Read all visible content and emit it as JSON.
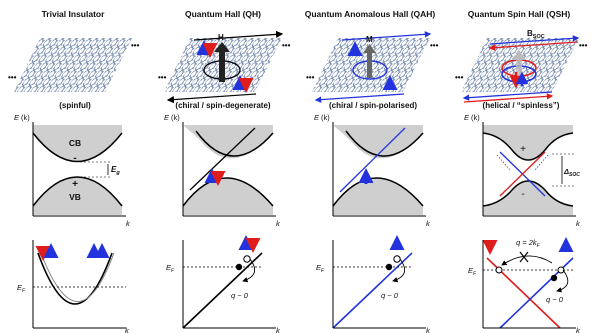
{
  "columns": [
    {
      "title": "Trivial Insulator",
      "subtitle": "(spinful)",
      "cb_label": "CB",
      "vb_label": "VB",
      "gap_label": "E",
      "gap_sub": "g",
      "minus_sign": "-",
      "plus_sign": "+"
    },
    {
      "title": "Quantum Hall (QH)",
      "subtitle": "(chiral / spin-degenerate)",
      "field_label": "H",
      "q_label": "q ~ 0"
    },
    {
      "title": "Quantum Anomalous Hall (QAH)",
      "subtitle": "(chiral / spin-polarised)",
      "field_label": "M",
      "q_label": "q ~ 0"
    },
    {
      "title": "Quantum Spin Hall (QSH)",
      "subtitle": "(helical / “spinless”)",
      "soc_label": "B",
      "soc_sub": "SOC",
      "delta_label": "Δ",
      "delta_sub": "SOC",
      "plus_sign": "+",
      "minus_sign": "-",
      "q_label": "q ~ 0",
      "q2_label": "q = 2k",
      "q2_sub": "F"
    }
  ],
  "axes": {
    "energy_label": "E",
    "energy_arg": "(k)",
    "k_label": "k",
    "fermi_label": "E",
    "fermi_sub": "F"
  },
  "ellipsis": "•••",
  "colors": {
    "lattice": "#2e4a7a",
    "lattice_node": "#9fb6d8",
    "red": "#e01d1d",
    "blue": "#2233dd",
    "band_fill": "#cfcfcf",
    "black": "#000000"
  }
}
